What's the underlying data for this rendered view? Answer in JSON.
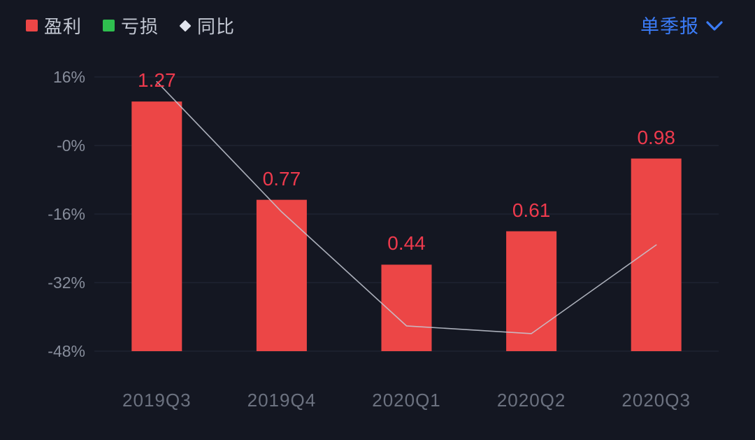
{
  "legend": {
    "items": [
      {
        "label": "盈利",
        "marker": "red-square"
      },
      {
        "label": "亏损",
        "marker": "green-square"
      },
      {
        "label": "同比",
        "marker": "white-diamond"
      }
    ]
  },
  "header": {
    "period_selector": {
      "label": "单季报",
      "icon": "chevron-down-icon"
    }
  },
  "colors": {
    "background": "#141722",
    "profit_bar": "#ec4646",
    "loss_green": "#2fbf4f",
    "yoy_marker": "#e0e4ed",
    "value_label_red": "#ee3a4d",
    "accent_blue": "#3b7cf8",
    "gridline": "#242938",
    "axis_text": "#878d9b"
  },
  "chart_data": {
    "type": "bar",
    "title": "",
    "categories": [
      "2019Q3",
      "2019Q4",
      "2020Q1",
      "2020Q2",
      "2020Q3"
    ],
    "series": [
      {
        "name": "盈利",
        "kind": "bar",
        "values": [
          1.27,
          0.77,
          0.44,
          0.61,
          0.98
        ],
        "color": "#ec4646"
      },
      {
        "name": "同比",
        "kind": "line",
        "values_pct": [
          14.9,
          -15.5,
          -42.1,
          -43.9,
          -23.2
        ],
        "color": "#c6cad5"
      }
    ],
    "value_labels": [
      "1.27",
      "0.77",
      "0.44",
      "0.61",
      "0.98"
    ],
    "y_axis_ticks": [
      "16%",
      "-0%",
      "-16%",
      "-32%",
      "-48%"
    ],
    "y_axis_values": [
      16,
      0,
      -16,
      -32,
      -48
    ],
    "ylim_pct": [
      -52,
      20
    ],
    "grid": "horizontal-only",
    "legend_position": "top-left"
  }
}
